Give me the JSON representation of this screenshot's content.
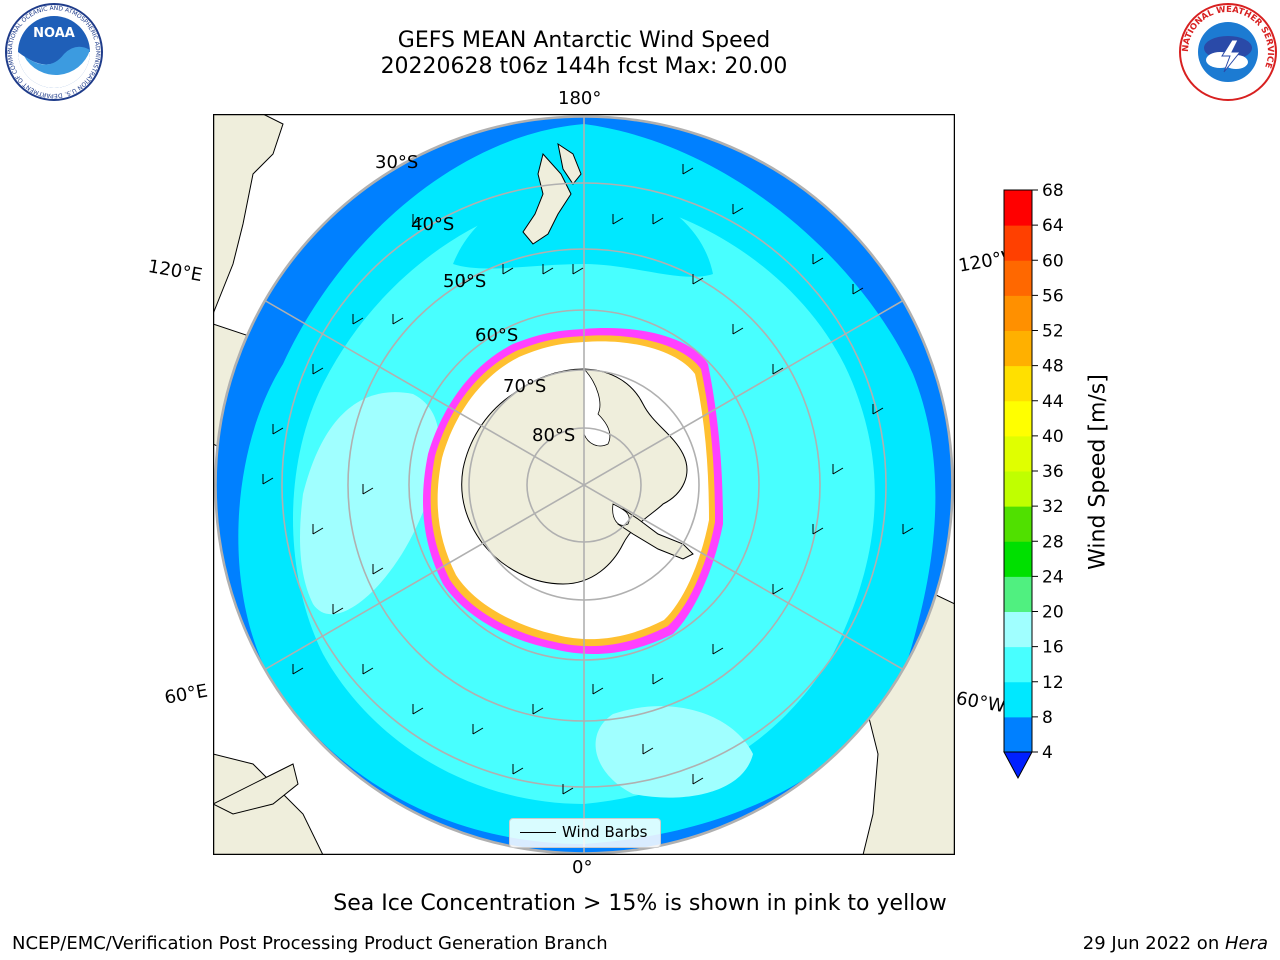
{
  "title": {
    "line1": "GEFS MEAN Antarctic Wind Speed",
    "line2": "20220628 t06z 144h fcst   Max: 20.00"
  },
  "logos": {
    "left": {
      "name": "noaa-logo",
      "text": "NOAA",
      "ring_text": "NATIONAL OCEANIC AND ATMOSPHERIC ADMINISTRATION  U.S. DEPARTMENT OF COMMERCE"
    },
    "right": {
      "name": "nws-logo",
      "ring_text": "NATIONAL WEATHER SERVICE"
    }
  },
  "map": {
    "projection": "south-polar-stereographic",
    "longitude_labels": {
      "top": "180°",
      "bottom": "0°",
      "upper_left": "120°E",
      "upper_right": "120°W",
      "lower_left": "60°E",
      "lower_right": "60°W"
    },
    "latitude_labels": [
      "30°S",
      "40°S",
      "50°S",
      "60°S",
      "70°S",
      "80°S"
    ],
    "latitude_rings_deg": [
      30,
      40,
      50,
      60,
      70,
      80
    ],
    "meridians_deg": [
      0,
      60,
      120,
      180,
      240,
      300
    ],
    "land_color": "#efeedc",
    "ice_color": "#ffffff",
    "sea_ice_edge_colors": [
      "#ff40ff",
      "#ff80b0",
      "#ffc030",
      "#ffe080"
    ],
    "legend_label": "Wind Barbs"
  },
  "colorbar": {
    "label": "Wind Speed [m/s]",
    "ticks": [
      "4",
      "8",
      "12",
      "16",
      "20",
      "24",
      "28",
      "32",
      "36",
      "40",
      "44",
      "48",
      "52",
      "56",
      "60",
      "64",
      "68"
    ],
    "colors": [
      "#0080ff",
      "#00e8ff",
      "#48ffff",
      "#a0ffff",
      "#50f080",
      "#00e000",
      "#50e000",
      "#c0ff00",
      "#e0ff00",
      "#ffff00",
      "#ffe000",
      "#ffb000",
      "#ff9000",
      "#ff6800",
      "#ff4000",
      "#ff0000"
    ],
    "under_color": "#0020ff"
  },
  "footnote": "Sea Ice Concentration > 15% is shown in pink to yellow",
  "credits": {
    "left": "NCEP/EMC/Verification Post Processing Product Generation Branch",
    "right_prefix": "29 Jun 2022 on ",
    "right_host": "Hera"
  }
}
